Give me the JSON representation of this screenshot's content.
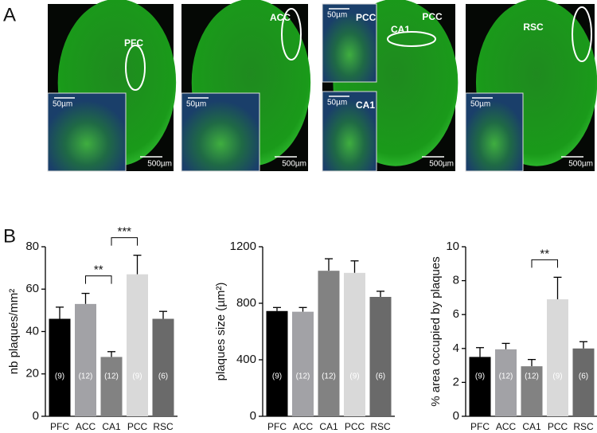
{
  "panel_labels": [
    "A",
    "B"
  ],
  "images": [
    {
      "regions": [
        "PFC"
      ],
      "insets": [
        {
          "scale": "50µm"
        }
      ],
      "scale": "500µm"
    },
    {
      "regions": [
        "ACC"
      ],
      "insets": [
        {
          "scale": "50µm"
        }
      ],
      "scale": "500µm"
    },
    {
      "regions": [
        "PCC",
        "CA1"
      ],
      "insets": [
        {
          "scale": "50µm",
          "label": "PCC"
        },
        {
          "scale": "50µm",
          "label": "CA1"
        }
      ],
      "scale": "500µm"
    },
    {
      "regions": [
        "RSC"
      ],
      "insets": [
        {
          "scale": "50µm"
        }
      ],
      "scale": "500µm"
    }
  ],
  "chart_data": [
    {
      "type": "bar",
      "ylabel": "nb plaques/mm²",
      "categories": [
        "PFC",
        "ACC",
        "CA1",
        "PCC",
        "RSC"
      ],
      "values": [
        46,
        53,
        28,
        67,
        46
      ],
      "errors": [
        5.5,
        5,
        2.5,
        9,
        3.5
      ],
      "value_labels": [
        "(9)",
        "(12)",
        "(12)",
        "(9)",
        "(6)"
      ],
      "colors": [
        "#000000",
        "#a2a2a6",
        "#828282",
        "#d9d9d9",
        "#6a6a6a"
      ],
      "ylim": [
        0,
        80
      ],
      "yticks": [
        0,
        20,
        40,
        60,
        80
      ],
      "significance": [
        {
          "between": [
            1,
            2
          ],
          "label": "**"
        },
        {
          "between": [
            2,
            3
          ],
          "label": "***"
        }
      ]
    },
    {
      "type": "bar",
      "ylabel": "plaques size (µm²)",
      "categories": [
        "PFC",
        "ACC",
        "CA1",
        "PCC",
        "RSC"
      ],
      "values": [
        745,
        740,
        1030,
        1015,
        845
      ],
      "errors": [
        25,
        30,
        85,
        85,
        40
      ],
      "value_labels": [
        "(9)",
        "(12)",
        "(12)",
        "(9)",
        "(6)"
      ],
      "colors": [
        "#000000",
        "#a2a2a6",
        "#828282",
        "#d9d9d9",
        "#6a6a6a"
      ],
      "ylim": [
        0,
        1200
      ],
      "yticks": [
        0,
        400,
        800,
        1200
      ],
      "significance": []
    },
    {
      "type": "bar",
      "ylabel": "% area occupied by plaques",
      "categories": [
        "PFC",
        "ACC",
        "CA1",
        "PCC",
        "RSC"
      ],
      "values": [
        3.5,
        3.95,
        2.95,
        6.9,
        4.0
      ],
      "errors": [
        0.55,
        0.35,
        0.4,
        1.3,
        0.4
      ],
      "value_labels": [
        "(9)",
        "(12)",
        "(12)",
        "(9)",
        "(6)"
      ],
      "colors": [
        "#000000",
        "#a2a2a6",
        "#828282",
        "#d9d9d9",
        "#6a6a6a"
      ],
      "ylim": [
        0,
        10
      ],
      "yticks": [
        0,
        2,
        4,
        6,
        8,
        10
      ],
      "significance": [
        {
          "between": [
            2,
            3
          ],
          "label": "**"
        }
      ]
    }
  ]
}
